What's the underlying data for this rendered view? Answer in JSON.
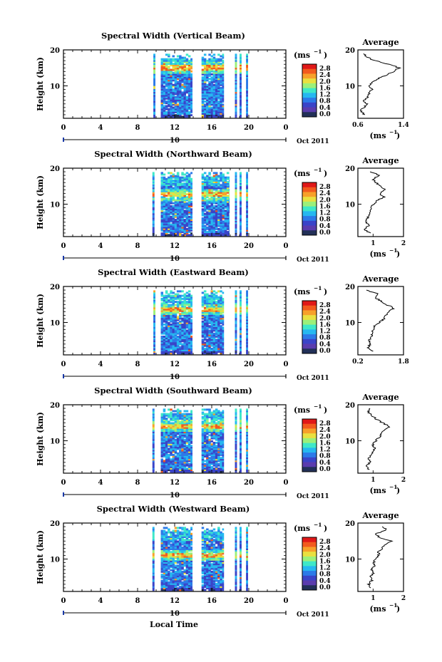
{
  "x_axis_label": "Local Time",
  "height_label": "Height (km)",
  "unit_label": "(ms",
  "unit_exp": "−1",
  "avg_title": "Average",
  "date_text": "Oct 2011",
  "day_mark": "10",
  "colorbar": {
    "ticks": [
      "2.8",
      "2.4",
      "2.0",
      "1.6",
      "1.2",
      "0.8",
      "0.4",
      "0.0"
    ],
    "colors": [
      "#e01818",
      "#f25a1e",
      "#f7a02a",
      "#e9e040",
      "#9cf07a",
      "#3fe8c8",
      "#26b8f0",
      "#2c7ae8",
      "#3a44c8",
      "#5a3cae",
      "#223058"
    ]
  },
  "chart_data": [
    {
      "type": "heatmap",
      "title": "Spectral Width (Vertical Beam)",
      "xlabel": "Local Time",
      "ylabel": "Height (km)",
      "xlim": [
        0,
        24
      ],
      "ylim": [
        1,
        20
      ],
      "x_ticks": [
        "0",
        "4",
        "8",
        "12",
        "16",
        "20",
        "0"
      ],
      "y_ticks": [
        "20",
        "10"
      ],
      "colorbar_label": "ms-1",
      "colorbar_range": [
        0,
        2.8
      ],
      "data_columns": [
        [
          9.7,
          9.9
        ],
        [
          10.5,
          13.9
        ],
        [
          14.9,
          17.3
        ],
        [
          18.5,
          18.7
        ],
        [
          19.0,
          19.2
        ],
        [
          19.7,
          19.9
        ]
      ],
      "bright_band_km": 15,
      "average": {
        "xlim": [
          0.6,
          1.4
        ],
        "x_ticks": [
          "0.6",
          "1.4"
        ],
        "xlabel": "(ms-1)",
        "profile": [
          [
            2,
            0.72
          ],
          [
            3,
            0.65
          ],
          [
            4,
            0.7
          ],
          [
            5,
            0.76
          ],
          [
            6,
            0.7
          ],
          [
            7,
            0.78
          ],
          [
            8,
            0.8
          ],
          [
            9,
            0.84
          ],
          [
            10,
            0.78
          ],
          [
            11,
            0.86
          ],
          [
            12,
            0.95
          ],
          [
            13,
            1.1
          ],
          [
            14,
            1.22
          ],
          [
            15,
            1.32
          ],
          [
            16,
            1.15
          ],
          [
            17,
            0.9
          ],
          [
            18,
            0.75
          ],
          [
            19,
            0.7
          ]
        ]
      }
    },
    {
      "type": "heatmap",
      "title": "Spectral Width (Northward Beam)",
      "xlabel": "Local Time",
      "ylabel": "Height (km)",
      "xlim": [
        0,
        24
      ],
      "ylim": [
        1,
        20
      ],
      "x_ticks": [
        "0",
        "4",
        "8",
        "12",
        "16",
        "20",
        "0"
      ],
      "y_ticks": [
        "20",
        "10"
      ],
      "colorbar_label": "ms-1",
      "colorbar_range": [
        0,
        2.8
      ],
      "data_columns": [
        [
          9.6,
          9.8
        ],
        [
          10.5,
          13.9
        ],
        [
          14.9,
          17.9
        ],
        [
          18.5,
          18.7
        ],
        [
          19.0,
          19.2
        ],
        [
          19.7,
          19.9
        ]
      ],
      "bright_band_km": 12.5,
      "average": {
        "xlim": [
          0.5,
          2
        ],
        "x_ticks": [
          "1",
          "2"
        ],
        "xlabel": "(ms-1)",
        "profile": [
          [
            2,
            0.9
          ],
          [
            3,
            0.72
          ],
          [
            4,
            0.85
          ],
          [
            5,
            0.78
          ],
          [
            6,
            0.8
          ],
          [
            7,
            0.88
          ],
          [
            8,
            0.95
          ],
          [
            9,
            0.9
          ],
          [
            10,
            1.0
          ],
          [
            11,
            1.15
          ],
          [
            12,
            1.35
          ],
          [
            13,
            1.2
          ],
          [
            14,
            1.4
          ],
          [
            15,
            1.25
          ],
          [
            16,
            1.1
          ],
          [
            17,
            1.0
          ],
          [
            18,
            1.2
          ],
          [
            19,
            0.9
          ]
        ]
      }
    },
    {
      "type": "heatmap",
      "title": "Spectral Width (Eastward Beam)",
      "xlabel": "Local Time",
      "ylabel": "Height (km)",
      "xlim": [
        0,
        24
      ],
      "ylim": [
        1,
        20
      ],
      "x_ticks": [
        "0",
        "4",
        "8",
        "12",
        "16",
        "20",
        "0"
      ],
      "y_ticks": [
        "20",
        "10"
      ],
      "colorbar_label": "ms-1",
      "colorbar_range": [
        0,
        2.8
      ],
      "data_columns": [
        [
          9.7,
          9.9
        ],
        [
          10.5,
          13.9
        ],
        [
          14.9,
          17.3
        ],
        [
          18.5,
          18.7
        ],
        [
          19.0,
          19.2
        ],
        [
          19.7,
          19.9
        ]
      ],
      "bright_band_km": 13.5,
      "average": {
        "xlim": [
          0.2,
          1.8
        ],
        "x_ticks": [
          "0.2",
          "1.8"
        ],
        "xlabel": "",
        "profile": [
          [
            2,
            0.7
          ],
          [
            3,
            0.55
          ],
          [
            4,
            0.65
          ],
          [
            5,
            0.6
          ],
          [
            6,
            0.7
          ],
          [
            7,
            0.68
          ],
          [
            8,
            0.75
          ],
          [
            9,
            0.8
          ],
          [
            10,
            0.95
          ],
          [
            11,
            1.1
          ],
          [
            12,
            1.2
          ],
          [
            13,
            1.3
          ],
          [
            14,
            1.45
          ],
          [
            15,
            1.2
          ],
          [
            16,
            1.0
          ],
          [
            17,
            0.8
          ],
          [
            18,
            0.9
          ],
          [
            19,
            0.5
          ]
        ]
      }
    },
    {
      "type": "heatmap",
      "title": "Spectral Width (Southward Beam)",
      "xlabel": "Local Time",
      "ylabel": "Height (km)",
      "xlim": [
        0,
        24
      ],
      "ylim": [
        1,
        20
      ],
      "x_ticks": [
        "0",
        "4",
        "8",
        "12",
        "16",
        "20",
        "0"
      ],
      "y_ticks": [
        "20",
        "10"
      ],
      "colorbar_label": "ms-1",
      "colorbar_range": [
        0,
        2.8
      ],
      "data_columns": [
        [
          9.6,
          9.8
        ],
        [
          10.5,
          13.9
        ],
        [
          14.9,
          17.3
        ],
        [
          18.5,
          18.7
        ],
        [
          19.0,
          19.2
        ],
        [
          19.7,
          19.9
        ]
      ],
      "bright_band_km": 14,
      "average": {
        "xlim": [
          0.5,
          2
        ],
        "x_ticks": [
          "1",
          "2"
        ],
        "xlabel": "(ms-1)",
        "profile": [
          [
            2,
            0.85
          ],
          [
            3,
            0.8
          ],
          [
            4,
            0.9
          ],
          [
            5,
            0.85
          ],
          [
            6,
            0.95
          ],
          [
            7,
            1.0
          ],
          [
            8,
            1.05
          ],
          [
            9,
            1.0
          ],
          [
            10,
            1.1
          ],
          [
            11,
            1.2
          ],
          [
            12,
            1.3
          ],
          [
            13,
            1.35
          ],
          [
            14,
            1.55
          ],
          [
            15,
            1.3
          ],
          [
            16,
            1.1
          ],
          [
            17,
            0.95
          ],
          [
            18,
            0.85
          ],
          [
            19,
            0.9
          ]
        ]
      }
    },
    {
      "type": "heatmap",
      "title": "Spectral Width (Westward Beam)",
      "xlabel": "Local Time",
      "ylabel": "Height (km)",
      "xlim": [
        0,
        24
      ],
      "ylim": [
        1,
        20
      ],
      "x_ticks": [
        "0",
        "4",
        "8",
        "12",
        "16",
        "20",
        "0"
      ],
      "y_ticks": [
        "20",
        "10"
      ],
      "colorbar_label": "ms-1",
      "colorbar_range": [
        0,
        2.8
      ],
      "data_columns": [
        [
          9.6,
          9.8
        ],
        [
          10.5,
          13.9
        ],
        [
          14.9,
          17.3
        ],
        [
          18.5,
          18.7
        ],
        [
          19.0,
          19.2
        ],
        [
          19.7,
          19.9
        ]
      ],
      "bright_band_km": 11,
      "average": {
        "xlim": [
          0.5,
          2
        ],
        "x_ticks": [
          "1",
          "2"
        ],
        "xlabel": "(ms-1)",
        "profile": [
          [
            2,
            0.9
          ],
          [
            3,
            0.85
          ],
          [
            4,
            0.95
          ],
          [
            5,
            0.9
          ],
          [
            6,
            1.0
          ],
          [
            7,
            0.95
          ],
          [
            8,
            1.05
          ],
          [
            9,
            1.0
          ],
          [
            10,
            1.1
          ],
          [
            11,
            1.2
          ],
          [
            12,
            1.15
          ],
          [
            13,
            1.3
          ],
          [
            14,
            1.4
          ],
          [
            15,
            1.6
          ],
          [
            16,
            1.2
          ],
          [
            17,
            1.1
          ],
          [
            18,
            1.45
          ],
          [
            19,
            1.3
          ]
        ]
      }
    }
  ]
}
